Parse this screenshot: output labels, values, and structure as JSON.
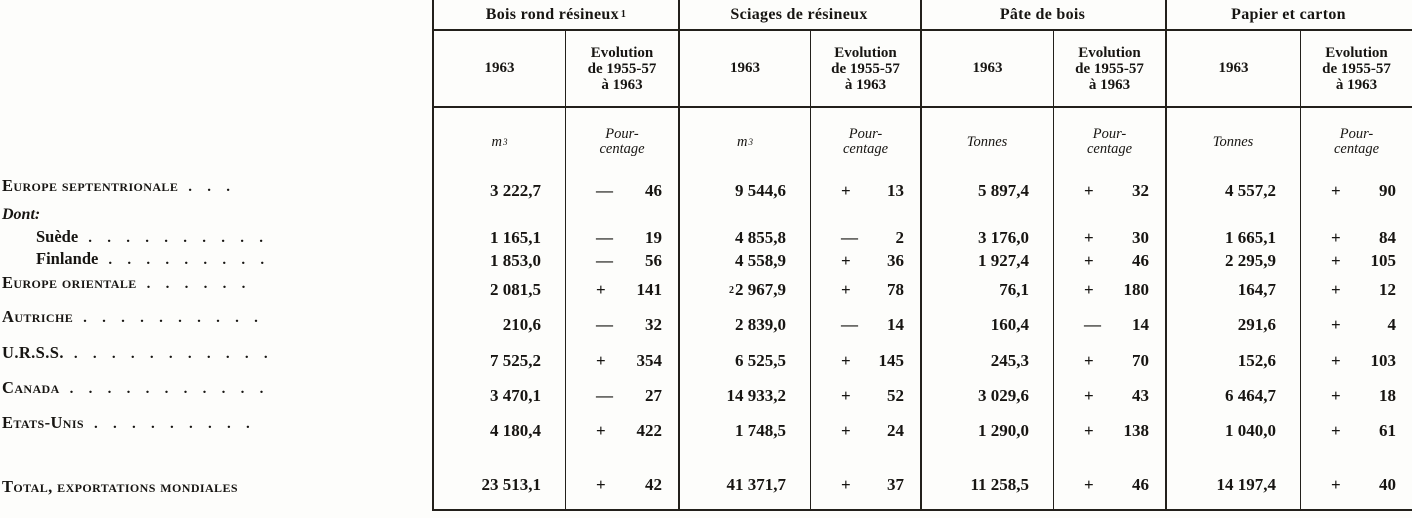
{
  "palette": {
    "paper": "#fdfdfb",
    "ink": "#171512",
    "rule": "#23201b"
  },
  "header": {
    "groups": [
      {
        "title": "Bois rond résineux",
        "footnote": "1"
      },
      {
        "title": "Sciages de résineux",
        "footnote": ""
      },
      {
        "title": "Pâte de bois",
        "footnote": ""
      },
      {
        "title": "Papier et carton",
        "footnote": ""
      }
    ],
    "year": "1963",
    "evolution_lines": [
      "Evolution",
      "de 1955-57",
      "à 1963"
    ],
    "units": [
      {
        "base": "m",
        "sup": "3"
      },
      {
        "base": "m",
        "sup": "3"
      },
      {
        "base": "Tonnes",
        "sup": ""
      },
      {
        "base": "Tonnes",
        "sup": ""
      }
    ],
    "pct_lines": [
      "Pour-",
      "centage"
    ]
  },
  "rows": [
    {
      "label": "Europe septentrionale",
      "dots": ".   .   .",
      "values": [
        "3 222,7",
        "9 544,6",
        "5 897,4",
        "4 557,2"
      ],
      "signs": [
        "—",
        "+",
        "+",
        "+"
      ],
      "pcts": [
        "46",
        "13",
        "32",
        "90"
      ]
    },
    {
      "label": "Dont:",
      "dots": ""
    },
    {
      "label": "Suède",
      "dots": ".   .   .   .   .   .   .   .   .   .",
      "values": [
        "1 165,1",
        "4 855,8",
        "3 176,0",
        "1 665,1"
      ],
      "signs": [
        "—",
        "—",
        "+",
        "+"
      ],
      "pcts": [
        "19",
        "2",
        "30",
        "84"
      ]
    },
    {
      "label": "Finlande",
      "dots": ".   .   .   .   .   .   .   .   .",
      "values": [
        "1 853,0",
        "4 558,9",
        "1 927,4",
        "2 295,9"
      ],
      "signs": [
        "—",
        "+",
        "+",
        "+"
      ],
      "pcts": [
        "56",
        "36",
        "46",
        "105"
      ]
    },
    {
      "label": "Europe orientale",
      "dots": ".   .   .   .   .   .",
      "values": [
        "2 081,5",
        "2 967,9",
        "76,1",
        "164,7"
      ],
      "sups": [
        "",
        "2",
        "",
        ""
      ],
      "signs": [
        "+",
        "+",
        "+",
        "+"
      ],
      "pcts": [
        "141",
        "78",
        "180",
        "12"
      ]
    },
    {
      "label": "Autriche",
      "dots": ".   .   .   .   .   .   .   .   .   .",
      "values": [
        "210,6",
        "2 839,0",
        "160,4",
        "291,6"
      ],
      "signs": [
        "—",
        "—",
        "—",
        "+"
      ],
      "pcts": [
        "32",
        "14",
        "14",
        "4"
      ]
    },
    {
      "label": "U.R.S.S.",
      "dots": ".   .   .   .   .   .   .   .   .   .   .",
      "values": [
        "7 525,2",
        "6 525,5",
        "245,3",
        "152,6"
      ],
      "signs": [
        "+",
        "+",
        "+",
        "+"
      ],
      "pcts": [
        "354",
        "145",
        "70",
        "103"
      ]
    },
    {
      "label": "Canada",
      "dots": ".   .   .   .   .   .   .   .   .   .   .",
      "values": [
        "3 470,1",
        "14 933,2",
        "3 029,6",
        "6 464,7"
      ],
      "signs": [
        "—",
        "+",
        "+",
        "+"
      ],
      "pcts": [
        "27",
        "52",
        "43",
        "18"
      ]
    },
    {
      "label": "Etats-Unis",
      "dots": ".   .   .   .   .   .   .   .   .",
      "values": [
        "4 180,4",
        "1 748,5",
        "1 290,0",
        "1 040,0"
      ],
      "signs": [
        "+",
        "+",
        "+",
        "+"
      ],
      "pcts": [
        "422",
        "24",
        "138",
        "61"
      ]
    },
    {
      "label": "Total, exportations mondiales",
      "dots": "",
      "values": [
        "23 513,1",
        "41 371,7",
        "11 258,5",
        "14 197,4"
      ],
      "signs": [
        "+",
        "+",
        "+",
        "+"
      ],
      "pcts": [
        "42",
        "37",
        "46",
        "40"
      ]
    }
  ]
}
